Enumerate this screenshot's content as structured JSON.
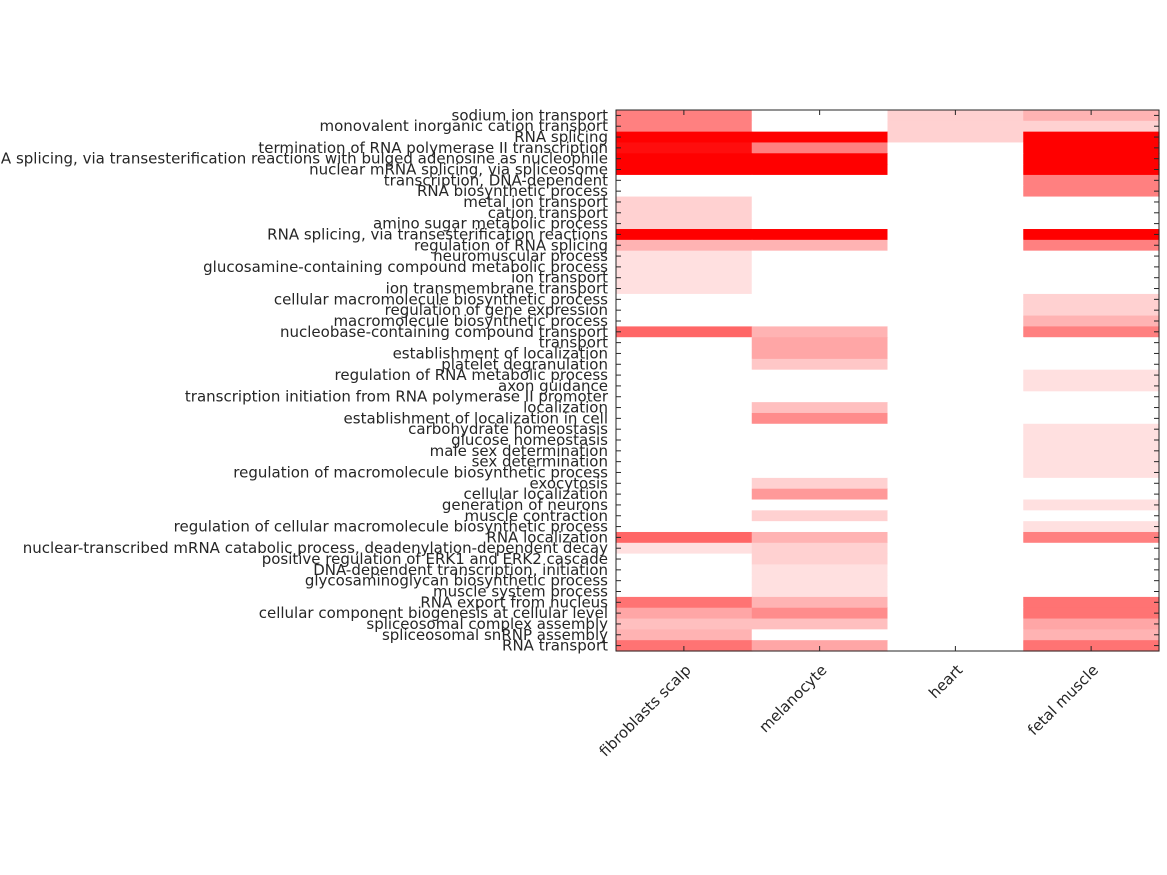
{
  "chart_data": {
    "type": "heatmap",
    "title": "",
    "xlabel": "",
    "ylabel": "",
    "color_low": "#ffffff",
    "color_high": "#ff0000",
    "value_range": [
      0,
      1
    ],
    "grid": false,
    "columns": [
      "fibroblasts scalp",
      "melanocyte",
      "heart",
      "fetal muscle"
    ],
    "rows": [
      "sodium ion transport",
      "monovalent inorganic cation transport",
      "RNA splicing",
      "termination of RNA polymerase II transcription",
      "RNA splicing, via transesterification reactions with bulged adenosine as nucleophile",
      "nuclear mRNA splicing, via spliceosome",
      "transcription, DNA-dependent",
      "RNA biosynthetic process",
      "metal ion transport",
      "cation transport",
      "amino sugar metabolic process",
      "RNA splicing, via transesterification reactions",
      "regulation of RNA splicing",
      "neuromuscular process",
      "glucosamine-containing compound metabolic process",
      "ion transport",
      "ion transmembrane transport",
      "cellular macromolecule biosynthetic process",
      "regulation of gene expression",
      "macromolecule biosynthetic process",
      "nucleobase-containing compound transport",
      "transport",
      "establishment of localization",
      "platelet degranulation",
      "regulation of RNA metabolic process",
      "axon guidance",
      "transcription initiation from RNA polymerase II promoter",
      "localization",
      "establishment of localization in cell",
      "carbohydrate homeostasis",
      "glucose homeostasis",
      "male sex determination",
      "sex determination",
      "regulation of macromolecule biosynthetic process",
      "exocytosis",
      "cellular localization",
      "generation of neurons",
      "muscle contraction",
      "regulation of cellular macromolecule biosynthetic process",
      "RNA localization",
      "nuclear-transcribed mRNA catabolic process, deadenylation-dependent decay",
      "positive regulation of ERK1 and ERK2 cascade",
      "DNA-dependent transcription, initiation",
      "glycosaminoglycan biosynthetic process",
      "muscle system process",
      "RNA export from nucleus",
      "cellular component biogenesis at cellular level",
      "spliceosomal complex assembly",
      "spliceosomal snRNP assembly",
      "RNA transport"
    ],
    "values": [
      [
        0.5,
        0.0,
        0.18,
        0.3
      ],
      [
        0.5,
        0.0,
        0.18,
        0.18
      ],
      [
        1.0,
        1.0,
        0.18,
        1.0
      ],
      [
        0.95,
        0.5,
        0.0,
        1.0
      ],
      [
        1.0,
        1.0,
        0.0,
        1.0
      ],
      [
        1.0,
        1.0,
        0.0,
        1.0
      ],
      [
        0.0,
        0.0,
        0.0,
        0.5
      ],
      [
        0.0,
        0.0,
        0.0,
        0.5
      ],
      [
        0.18,
        0.0,
        0.0,
        0.0
      ],
      [
        0.18,
        0.0,
        0.0,
        0.0
      ],
      [
        0.18,
        0.0,
        0.0,
        0.0
      ],
      [
        1.0,
        1.0,
        0.0,
        1.0
      ],
      [
        0.3,
        0.3,
        0.0,
        0.5
      ],
      [
        0.12,
        0.0,
        0.0,
        0.0
      ],
      [
        0.12,
        0.0,
        0.0,
        0.0
      ],
      [
        0.12,
        0.0,
        0.0,
        0.0
      ],
      [
        0.12,
        0.0,
        0.0,
        0.0
      ],
      [
        0.0,
        0.0,
        0.0,
        0.18
      ],
      [
        0.0,
        0.0,
        0.0,
        0.18
      ],
      [
        0.0,
        0.0,
        0.0,
        0.3
      ],
      [
        0.6,
        0.3,
        0.0,
        0.5
      ],
      [
        0.0,
        0.35,
        0.0,
        0.0
      ],
      [
        0.0,
        0.35,
        0.0,
        0.0
      ],
      [
        0.0,
        0.22,
        0.0,
        0.0
      ],
      [
        0.0,
        0.0,
        0.0,
        0.12
      ],
      [
        0.0,
        0.0,
        0.0,
        0.12
      ],
      [
        0.0,
        0.0,
        0.0,
        0.0
      ],
      [
        0.0,
        0.25,
        0.0,
        0.0
      ],
      [
        0.0,
        0.45,
        0.0,
        0.0
      ],
      [
        0.0,
        0.0,
        0.0,
        0.12
      ],
      [
        0.0,
        0.0,
        0.0,
        0.12
      ],
      [
        0.0,
        0.0,
        0.0,
        0.12
      ],
      [
        0.0,
        0.0,
        0.0,
        0.12
      ],
      [
        0.0,
        0.0,
        0.0,
        0.12
      ],
      [
        0.0,
        0.18,
        0.0,
        0.0
      ],
      [
        0.0,
        0.4,
        0.0,
        0.0
      ],
      [
        0.0,
        0.0,
        0.0,
        0.12
      ],
      [
        0.0,
        0.18,
        0.0,
        0.0
      ],
      [
        0.0,
        0.0,
        0.0,
        0.12
      ],
      [
        0.6,
        0.3,
        0.0,
        0.5
      ],
      [
        0.12,
        0.18,
        0.0,
        0.0
      ],
      [
        0.0,
        0.18,
        0.0,
        0.0
      ],
      [
        0.0,
        0.12,
        0.0,
        0.0
      ],
      [
        0.0,
        0.12,
        0.0,
        0.0
      ],
      [
        0.0,
        0.12,
        0.0,
        0.0
      ],
      [
        0.55,
        0.3,
        0.0,
        0.55
      ],
      [
        0.35,
        0.45,
        0.0,
        0.55
      ],
      [
        0.25,
        0.25,
        0.0,
        0.35
      ],
      [
        0.3,
        0.0,
        0.0,
        0.3
      ],
      [
        0.55,
        0.35,
        0.0,
        0.55
      ]
    ]
  }
}
